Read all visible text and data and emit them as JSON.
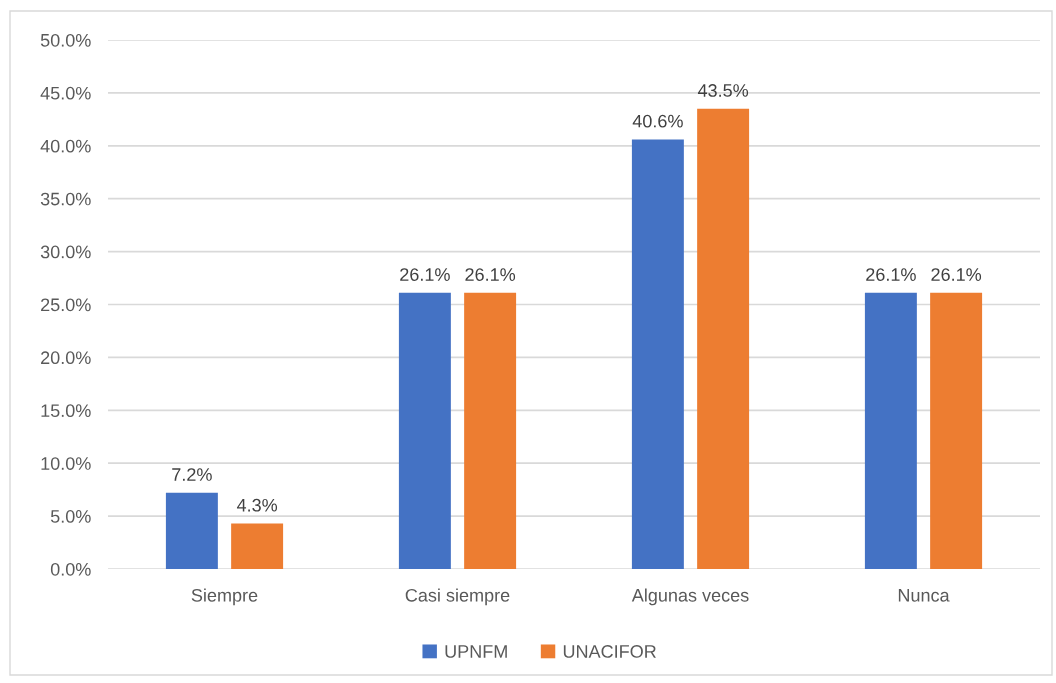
{
  "chart_data": {
    "type": "bar",
    "categories": [
      "Siempre",
      "Casi siempre",
      "Algunas veces",
      "Nunca"
    ],
    "series": [
      {
        "name": "UPNFM",
        "color": "#4472c4",
        "values": [
          7.2,
          26.1,
          40.6,
          26.1
        ],
        "value_labels": [
          "7.2%",
          "26.1%",
          "40.6%",
          "26.1%"
        ]
      },
      {
        "name": "UNACIFOR",
        "color": "#ed7d31",
        "values": [
          4.3,
          26.1,
          43.5,
          26.1
        ],
        "value_labels": [
          "4.3%",
          "26.1%",
          "43.5%",
          "26.1%"
        ]
      }
    ],
    "ylim": [
      0,
      50
    ],
    "yticks": [
      {
        "value": 0,
        "label": "0.0%"
      },
      {
        "value": 5,
        "label": "5.0%"
      },
      {
        "value": 10,
        "label": "10.0%"
      },
      {
        "value": 15,
        "label": "15.0%"
      },
      {
        "value": 20,
        "label": "20.0%"
      },
      {
        "value": 25,
        "label": "25.0%"
      },
      {
        "value": 30,
        "label": "30.0%"
      },
      {
        "value": 35,
        "label": "35.0%"
      },
      {
        "value": 40,
        "label": "40.0%"
      },
      {
        "value": 45,
        "label": "45.0%"
      },
      {
        "value": 50,
        "label": "50.0%"
      }
    ],
    "grid": "y",
    "legend": "bottom"
  }
}
